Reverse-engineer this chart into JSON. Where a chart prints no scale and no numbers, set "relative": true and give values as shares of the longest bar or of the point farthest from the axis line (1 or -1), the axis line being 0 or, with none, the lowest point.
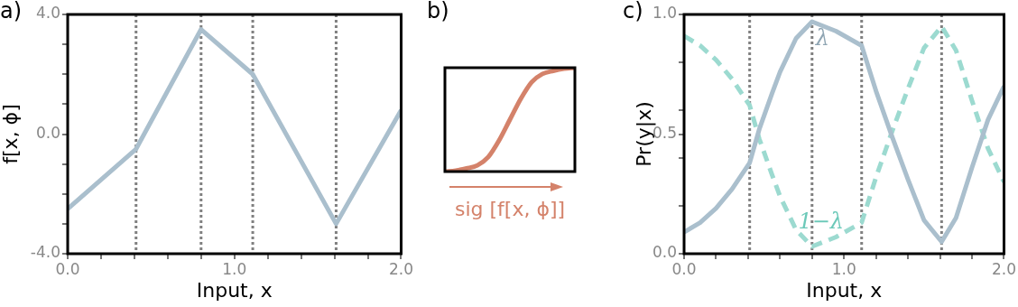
{
  "chart_data": [
    {
      "type": "line",
      "title": "a)",
      "xlabel": "Input, x",
      "ylabel": "f[x, ϕ]",
      "x": [
        0,
        0.41,
        0.8,
        1.11,
        1.61,
        2.0
      ],
      "series": [
        {
          "color": "#aabfcd",
          "values": [
            -2.5,
            -0.5,
            3.5,
            2.0,
            -3.0,
            0.8
          ]
        }
      ],
      "xlim": [
        0,
        2
      ],
      "ylim": [
        -4,
        4
      ],
      "xticks": [
        {
          "value": 0,
          "label": "0.0"
        },
        {
          "value": 0.2,
          "label": null
        },
        {
          "value": 0.4,
          "label": null
        },
        {
          "value": 0.6,
          "label": null
        },
        {
          "value": 0.8,
          "label": null
        },
        {
          "value": 1,
          "label": "1.0"
        },
        {
          "value": 1.2,
          "label": null
        },
        {
          "value": 1.4,
          "label": null
        },
        {
          "value": 1.6,
          "label": null
        },
        {
          "value": 1.8,
          "label": null
        },
        {
          "value": 2,
          "label": "2.0"
        }
      ],
      "yticks": [
        {
          "value": -4,
          "label": "-4.0"
        },
        {
          "value": -3,
          "label": null
        },
        {
          "value": -2,
          "label": null
        },
        {
          "value": -1,
          "label": null
        },
        {
          "value": 0,
          "label": "0.0"
        },
        {
          "value": 1,
          "label": null
        },
        {
          "value": 2,
          "label": null
        },
        {
          "value": 3,
          "label": null
        },
        {
          "value": 4,
          "label": "4.0"
        }
      ],
      "ref_lines": [
        {
          "axis": "x",
          "value": 0.41,
          "color": "#808080",
          "line_style": "dotted"
        },
        {
          "axis": "x",
          "value": 0.8,
          "color": "#808080",
          "line_style": "dotted"
        },
        {
          "axis": "x",
          "value": 1.11,
          "color": "#808080",
          "line_style": "dotted"
        },
        {
          "axis": "x",
          "value": 1.61,
          "color": "#808080",
          "line_style": "dotted"
        }
      ],
      "line_style": "solid",
      "marker": "none",
      "legend": false,
      "grid": false
    },
    {
      "type": "line",
      "title": "b)",
      "xlabel": "sig [f[x, ϕ]]",
      "relative": true,
      "categories": [
        null,
        null,
        null,
        null,
        null,
        null,
        null,
        null,
        null,
        null,
        null,
        null,
        null
      ],
      "series": [
        {
          "color": "#d4826a",
          "values": [
            0.0,
            0.01,
            0.03,
            0.06,
            0.14,
            0.3,
            0.5,
            0.7,
            0.86,
            0.94,
            0.97,
            0.99,
            1.0
          ]
        }
      ],
      "tick_labels": false,
      "line_style": "solid",
      "marker": "none",
      "legend": false,
      "grid": false
    },
    {
      "type": "line",
      "title": "c)",
      "xlabel": "Input, x",
      "ylabel": "Pr(y|x)",
      "x": [
        0,
        0.1,
        0.2,
        0.3,
        0.41,
        0.47,
        0.55,
        0.6,
        0.7,
        0.8,
        0.95,
        1.11,
        1.2,
        1.3,
        1.4,
        1.5,
        1.61,
        1.7,
        1.8,
        1.9,
        2.0
      ],
      "series": [
        {
          "name": "λ",
          "color": "#aabfcd",
          "line_style": "solid",
          "values": [
            0.09,
            0.13,
            0.19,
            0.27,
            0.38,
            0.52,
            0.67,
            0.76,
            0.9,
            0.97,
            0.93,
            0.87,
            0.68,
            0.49,
            0.31,
            0.14,
            0.05,
            0.15,
            0.36,
            0.56,
            0.7
          ]
        },
        {
          "name": "1−λ",
          "color": "#9cdad0",
          "line_style": "dashed",
          "values": [
            0.91,
            0.87,
            0.81,
            0.73,
            0.62,
            0.48,
            0.33,
            0.24,
            0.1,
            0.03,
            0.07,
            0.13,
            0.32,
            0.51,
            0.69,
            0.86,
            0.95,
            0.85,
            0.64,
            0.44,
            0.3
          ]
        }
      ],
      "xlim": [
        0,
        2
      ],
      "ylim": [
        0,
        1
      ],
      "xticks": [
        {
          "value": 0,
          "label": "0.0"
        },
        {
          "value": 0.2,
          "label": null
        },
        {
          "value": 0.4,
          "label": null
        },
        {
          "value": 0.6,
          "label": null
        },
        {
          "value": 0.8,
          "label": null
        },
        {
          "value": 1,
          "label": "1.0"
        },
        {
          "value": 1.2,
          "label": null
        },
        {
          "value": 1.4,
          "label": null
        },
        {
          "value": 1.6,
          "label": null
        },
        {
          "value": 1.8,
          "label": null
        },
        {
          "value": 2,
          "label": "2.0"
        }
      ],
      "yticks": [
        {
          "value": 0,
          "label": "0.0"
        },
        {
          "value": 0.2,
          "label": null
        },
        {
          "value": 0.4,
          "label": null
        },
        {
          "value": 0.5,
          "label": "0.5"
        },
        {
          "value": 0.6,
          "label": null
        },
        {
          "value": 0.8,
          "label": null
        },
        {
          "value": 1,
          "label": "1.0"
        }
      ],
      "ref_lines": [
        {
          "axis": "x",
          "value": 0.41,
          "color": "#808080",
          "line_style": "dotted"
        },
        {
          "axis": "x",
          "value": 0.8,
          "color": "#808080",
          "line_style": "dotted"
        },
        {
          "axis": "x",
          "value": 1.11,
          "color": "#808080",
          "line_style": "dotted"
        },
        {
          "axis": "x",
          "value": 1.61,
          "color": "#808080",
          "line_style": "dotted"
        }
      ],
      "marker": "none",
      "legend": false,
      "grid": false
    }
  ]
}
